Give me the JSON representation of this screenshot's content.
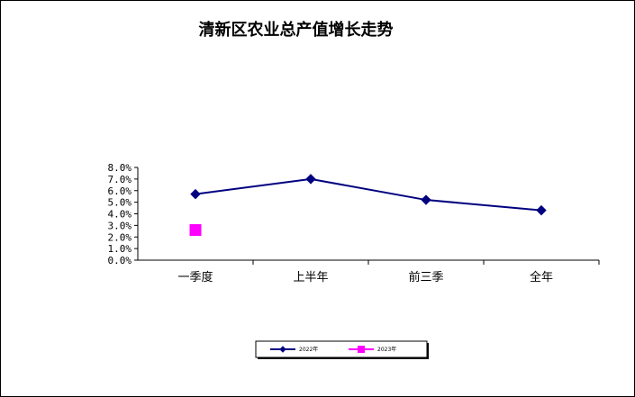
{
  "chart_data": {
    "type": "line",
    "title": "清新区农业总产值增长走势",
    "categories": [
      "一季度",
      "上半年",
      "前三季",
      "全年"
    ],
    "ylim": [
      0,
      8
    ],
    "y_ticks": [
      "0.0%",
      "1.0%",
      "2.0%",
      "3.0%",
      "4.0%",
      "5.0%",
      "6.0%",
      "7.0%",
      "8.0%"
    ],
    "grid": false,
    "legend_position": "bottom",
    "series": [
      {
        "name": "2022年",
        "values": [
          5.7,
          7.0,
          5.2,
          4.3
        ],
        "color": "#000080",
        "marker": "diamond"
      },
      {
        "name": "2023年",
        "values": [
          2.6,
          null,
          null,
          null
        ],
        "color": "#FF00FF",
        "marker": "square"
      }
    ]
  }
}
